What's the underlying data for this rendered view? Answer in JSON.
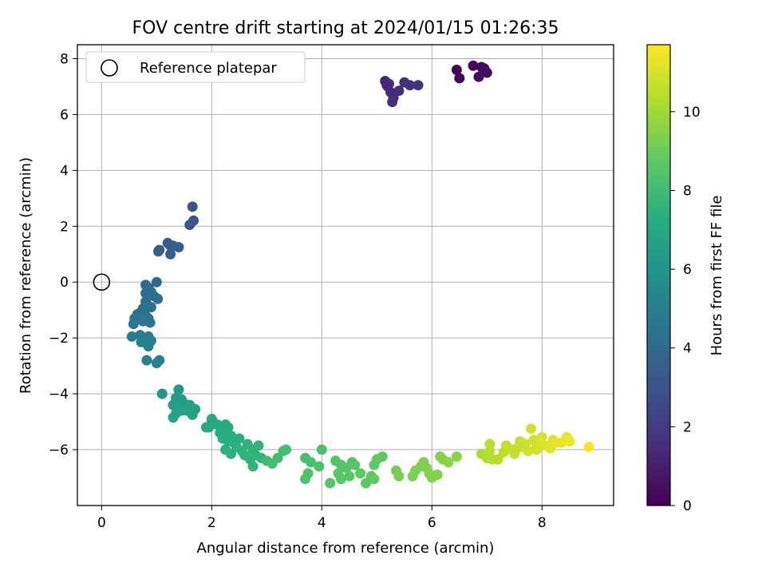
{
  "chart_data": {
    "type": "scatter",
    "title": "FOV centre drift starting at 2024/01/15 01:26:35",
    "xlabel": "Angular distance from reference (arcmin)",
    "ylabel": "Rotation from reference (arcmin)",
    "xlim": [
      -0.44,
      9.3
    ],
    "ylim": [
      -8.0,
      8.5
    ],
    "xticks": [
      0,
      2,
      4,
      6,
      8
    ],
    "yticks": [
      -6,
      -4,
      -2,
      0,
      2,
      4,
      6,
      8
    ],
    "grid": true,
    "legend": {
      "position": "top-left",
      "entries": [
        "Reference platepar"
      ]
    },
    "reference_point": {
      "x": 0,
      "y": 0
    },
    "colorbar": {
      "label": "Hours from first FF file",
      "range": [
        0,
        11.7
      ],
      "ticks": [
        0,
        2,
        4,
        6,
        8,
        10
      ],
      "colormap": "viridis"
    },
    "points": [
      [
        6.45,
        7.6,
        0.1
      ],
      [
        6.5,
        7.3,
        0.15
      ],
      [
        6.75,
        7.75,
        0.2
      ],
      [
        6.9,
        7.7,
        0.25
      ],
      [
        6.85,
        7.35,
        0.3
      ],
      [
        7.0,
        7.5,
        0.35
      ],
      [
        6.95,
        7.65,
        0.4
      ],
      [
        5.15,
        7.2,
        1.2
      ],
      [
        5.2,
        7.0,
        1.3
      ],
      [
        5.25,
        6.8,
        1.35
      ],
      [
        5.3,
        6.6,
        1.4
      ],
      [
        5.28,
        6.45,
        1.45
      ],
      [
        5.4,
        6.85,
        1.5
      ],
      [
        5.5,
        7.15,
        1.6
      ],
      [
        5.6,
        7.05,
        1.65
      ],
      [
        5.75,
        7.05,
        1.7
      ],
      [
        5.22,
        7.1,
        1.55
      ],
      [
        5.18,
        7.05,
        1.25
      ],
      [
        1.65,
        2.7,
        3.0
      ],
      [
        1.67,
        2.2,
        3.1
      ],
      [
        1.6,
        2.05,
        3.15
      ],
      [
        1.2,
        1.4,
        3.3
      ],
      [
        1.25,
        1.3,
        3.35
      ],
      [
        1.3,
        1.3,
        3.4
      ],
      [
        1.4,
        1.25,
        3.45
      ],
      [
        1.25,
        1.0,
        3.5
      ],
      [
        1.05,
        1.15,
        3.55
      ],
      [
        1.03,
        1.1,
        3.6
      ],
      [
        0.8,
        -0.1,
        4.0
      ],
      [
        1.0,
        0.0,
        4.05
      ],
      [
        0.85,
        -0.2,
        4.1
      ],
      [
        0.8,
        -0.4,
        4.15
      ],
      [
        0.9,
        -0.35,
        4.2
      ],
      [
        0.95,
        -0.5,
        4.2
      ],
      [
        1.02,
        -0.6,
        4.25
      ],
      [
        0.8,
        -0.7,
        4.3
      ],
      [
        0.85,
        -0.85,
        4.35
      ],
      [
        0.75,
        -0.95,
        4.4
      ],
      [
        0.9,
        -0.9,
        4.4
      ],
      [
        0.7,
        -1.1,
        4.45
      ],
      [
        0.65,
        -1.15,
        4.5
      ],
      [
        0.8,
        -1.2,
        4.5
      ],
      [
        0.85,
        -1.3,
        4.55
      ],
      [
        0.6,
        -1.3,
        4.55
      ],
      [
        0.58,
        -1.5,
        4.6
      ],
      [
        0.75,
        -1.4,
        4.6
      ],
      [
        0.88,
        -1.45,
        4.65
      ],
      [
        0.7,
        -1.9,
        4.8
      ],
      [
        0.75,
        -2.0,
        4.85
      ],
      [
        0.8,
        -2.1,
        4.9
      ],
      [
        0.85,
        -1.95,
        4.9
      ],
      [
        0.55,
        -1.95,
        4.95
      ],
      [
        0.72,
        -2.15,
        5.0
      ],
      [
        0.9,
        -2.1,
        5.0
      ],
      [
        0.85,
        -2.3,
        5.05
      ],
      [
        1.05,
        -2.8,
        5.1
      ],
      [
        1.0,
        -2.9,
        5.15
      ],
      [
        0.82,
        -2.8,
        5.2
      ],
      [
        1.1,
        -4.0,
        6.2
      ],
      [
        1.4,
        -3.85,
        6.3
      ],
      [
        1.35,
        -4.15,
        6.35
      ],
      [
        1.45,
        -4.2,
        6.4
      ],
      [
        1.5,
        -4.35,
        6.45
      ],
      [
        1.3,
        -4.4,
        6.5
      ],
      [
        1.4,
        -4.5,
        6.5
      ],
      [
        1.6,
        -4.4,
        6.55
      ],
      [
        1.7,
        -4.55,
        6.6
      ],
      [
        1.55,
        -4.6,
        6.6
      ],
      [
        1.35,
        -4.7,
        6.65
      ],
      [
        1.65,
        -4.75,
        6.7
      ],
      [
        1.45,
        -4.6,
        6.7
      ],
      [
        1.3,
        -4.85,
        6.75
      ],
      [
        1.95,
        -5.2,
        7.0
      ],
      [
        2.0,
        -5.0,
        7.05
      ],
      [
        2.1,
        -5.1,
        7.1
      ],
      [
        2.2,
        -5.3,
        7.15
      ],
      [
        2.25,
        -5.1,
        7.15
      ],
      [
        2.3,
        -5.2,
        7.2
      ],
      [
        2.15,
        -5.4,
        7.2
      ],
      [
        2.35,
        -5.5,
        7.25
      ],
      [
        2.3,
        -5.7,
        7.3
      ],
      [
        2.2,
        -5.6,
        7.3
      ],
      [
        2.4,
        -5.75,
        7.35
      ],
      [
        2.5,
        -5.6,
        7.35
      ],
      [
        2.45,
        -5.9,
        7.4
      ],
      [
        2.25,
        -6.0,
        7.4
      ],
      [
        2.35,
        -6.15,
        7.45
      ],
      [
        2.55,
        -6.05,
        7.45
      ],
      [
        2.65,
        -5.8,
        7.5
      ],
      [
        2.75,
        -6.0,
        7.5
      ],
      [
        2.8,
        -6.2,
        7.55
      ],
      [
        2.7,
        -6.35,
        7.55
      ],
      [
        2.85,
        -5.85,
        7.6
      ],
      [
        2.6,
        -6.2,
        7.6
      ],
      [
        2.9,
        -6.3,
        7.65
      ],
      [
        2.75,
        -6.6,
        7.65
      ],
      [
        1.9,
        -5.2,
        7.05
      ],
      [
        2.0,
        -4.9,
        7.1
      ],
      [
        3.0,
        -6.4,
        8.0
      ],
      [
        3.2,
        -6.3,
        8.05
      ],
      [
        3.3,
        -6.05,
        8.1
      ],
      [
        3.35,
        -6.0,
        8.1
      ],
      [
        3.1,
        -6.5,
        8.15
      ],
      [
        3.7,
        -6.3,
        8.2
      ],
      [
        3.8,
        -6.45,
        8.25
      ],
      [
        3.95,
        -6.6,
        8.3
      ],
      [
        4.0,
        -6.0,
        8.3
      ],
      [
        3.75,
        -6.85,
        8.35
      ],
      [
        3.7,
        -7.05,
        8.4
      ],
      [
        4.15,
        -7.2,
        8.45
      ],
      [
        4.25,
        -6.4,
        8.5
      ],
      [
        4.35,
        -6.55,
        8.5
      ],
      [
        4.45,
        -6.65,
        8.55
      ],
      [
        4.55,
        -6.45,
        8.55
      ],
      [
        4.6,
        -6.55,
        8.6
      ],
      [
        4.3,
        -6.85,
        8.6
      ],
      [
        4.35,
        -7.05,
        8.65
      ],
      [
        4.5,
        -6.95,
        8.65
      ],
      [
        4.7,
        -6.85,
        8.7
      ],
      [
        4.8,
        -7.2,
        8.7
      ],
      [
        4.9,
        -6.95,
        8.75
      ],
      [
        4.95,
        -6.55,
        8.75
      ],
      [
        5.0,
        -6.35,
        8.8
      ],
      [
        5.1,
        -6.25,
        8.8
      ],
      [
        4.95,
        -7.05,
        8.85
      ],
      [
        5.35,
        -6.75,
        9.2
      ],
      [
        5.4,
        -6.95,
        9.25
      ],
      [
        5.65,
        -6.95,
        9.3
      ],
      [
        5.7,
        -6.75,
        9.3
      ],
      [
        5.8,
        -6.6,
        9.35
      ],
      [
        5.85,
        -6.45,
        9.35
      ],
      [
        5.9,
        -6.65,
        9.4
      ],
      [
        5.95,
        -6.85,
        9.4
      ],
      [
        6.0,
        -7.0,
        9.45
      ],
      [
        6.1,
        -6.9,
        9.45
      ],
      [
        6.15,
        -6.25,
        9.5
      ],
      [
        6.2,
        -6.35,
        9.5
      ],
      [
        6.3,
        -6.45,
        9.55
      ],
      [
        6.45,
        -6.25,
        9.55
      ],
      [
        6.9,
        -6.15,
        10.3
      ],
      [
        7.0,
        -6.3,
        10.35
      ],
      [
        7.05,
        -6.05,
        10.4
      ],
      [
        7.1,
        -6.35,
        10.45
      ],
      [
        7.2,
        -6.35,
        10.5
      ],
      [
        7.3,
        -6.1,
        10.55
      ],
      [
        7.35,
        -5.85,
        10.6
      ],
      [
        7.45,
        -6.0,
        10.6
      ],
      [
        7.5,
        -6.15,
        10.65
      ],
      [
        7.55,
        -5.95,
        10.7
      ],
      [
        7.6,
        -5.7,
        10.75
      ],
      [
        7.7,
        -5.8,
        10.8
      ],
      [
        7.75,
        -6.05,
        10.85
      ],
      [
        7.8,
        -5.25,
        10.9
      ],
      [
        7.85,
        -5.65,
        10.9
      ],
      [
        7.9,
        -5.9,
        10.95
      ],
      [
        7.95,
        -5.75,
        11.0
      ],
      [
        8.0,
        -5.55,
        11.05
      ],
      [
        8.05,
        -5.85,
        11.1
      ],
      [
        8.15,
        -5.95,
        11.15
      ],
      [
        8.2,
        -5.65,
        11.2
      ],
      [
        8.25,
        -5.75,
        11.25
      ],
      [
        8.35,
        -5.75,
        11.3
      ],
      [
        8.45,
        -5.55,
        11.35
      ],
      [
        8.5,
        -5.7,
        11.4
      ],
      [
        8.85,
        -5.9,
        11.6
      ],
      [
        7.05,
        -5.8,
        10.45
      ],
      [
        7.65,
        -5.9,
        10.75
      ],
      [
        7.9,
        -6.0,
        10.95
      ]
    ]
  }
}
